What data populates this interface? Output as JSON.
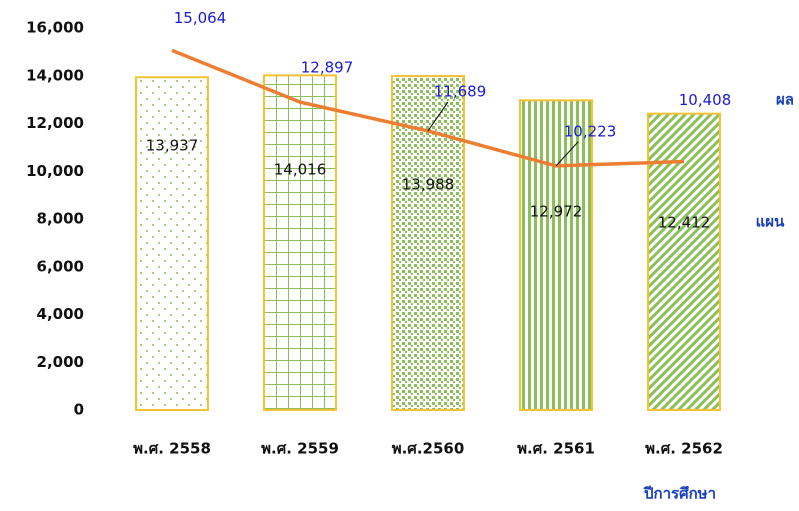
{
  "chart_data": {
    "type": "bar_line",
    "categories": [
      "พ.ศ. 2558",
      "พ.ศ. 2559",
      "พ.ศ.2560",
      "พ.ศ. 2561",
      "พ.ศ. 2562"
    ],
    "series": [
      {
        "name": "แผน",
        "type": "bar",
        "color": "#f2c233",
        "pattern_color": "#8cbf5a",
        "values": [
          13937,
          14016,
          13988,
          12972,
          12412
        ],
        "value_labels": [
          "13,937",
          "14,016",
          "13,988",
          "12,972",
          "12,412"
        ]
      },
      {
        "name": "ผล",
        "type": "line",
        "color": "#ed7d31",
        "label_color": "#1a1ad6",
        "values": [
          15064,
          12897,
          11689,
          10223,
          10408
        ],
        "value_labels": [
          "15,064",
          "12,897",
          "11,689",
          "10,223",
          "10,408"
        ]
      }
    ],
    "x_label": "ปีการศึกษา",
    "ylim": [
      0,
      16000
    ],
    "yticks": [
      0,
      {
        "value": 2000,
        "label": "2,000"
      },
      {
        "value": 4000,
        "label": "4,000"
      },
      {
        "value": 6000,
        "label": "6,000"
      },
      {
        "value": 8000,
        "label": "8,000"
      },
      {
        "value": 10000,
        "label": "10,000"
      },
      {
        "value": 12000,
        "label": "12,000"
      },
      {
        "value": 14000,
        "label": "14,000"
      },
      {
        "value": 16000,
        "label": "16,000"
      }
    ]
  }
}
